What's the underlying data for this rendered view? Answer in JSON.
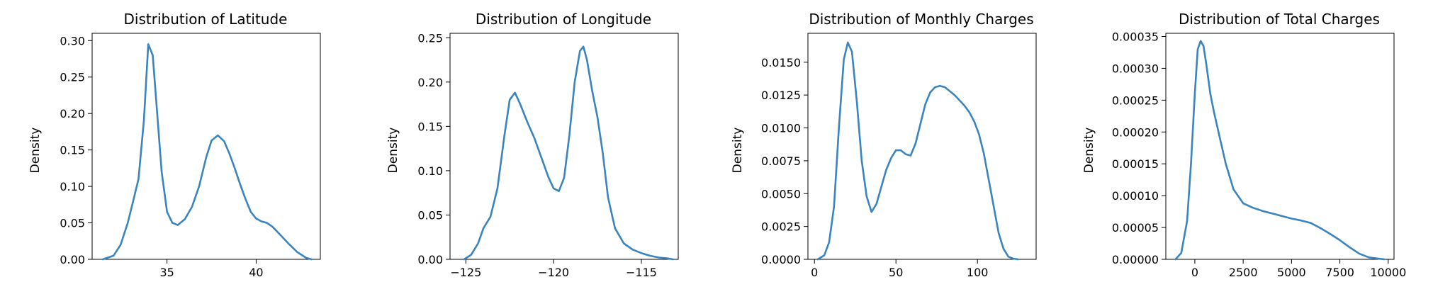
{
  "style": {
    "line_color": "#3a84bf"
  },
  "chart_data": [
    {
      "type": "line",
      "title": "Distribution of Latitude",
      "xlabel": "",
      "ylabel": "Density",
      "xlim": [
        30.8,
        43.6
      ],
      "ylim": [
        0,
        0.31
      ],
      "xticks": [
        35,
        40
      ],
      "yticks": [
        0.0,
        0.05,
        0.1,
        0.15,
        0.2,
        0.25,
        0.3
      ],
      "ytick_labels": [
        "0.00",
        "0.05",
        "0.10",
        "0.15",
        "0.20",
        "0.25",
        "0.30"
      ],
      "series": [
        {
          "x": [
            31.4,
            32.0,
            32.4,
            32.8,
            33.1,
            33.4,
            33.7,
            33.95,
            34.2,
            34.45,
            34.7,
            35.0,
            35.3,
            35.6,
            36.0,
            36.4,
            36.8,
            37.2,
            37.5,
            37.85,
            38.2,
            38.5,
            38.8,
            39.1,
            39.4,
            39.7,
            40.0,
            40.3,
            40.6,
            40.9,
            41.3,
            41.8,
            42.3,
            42.8,
            43.1
          ],
          "y": [
            0.0,
            0.005,
            0.02,
            0.05,
            0.08,
            0.11,
            0.19,
            0.295,
            0.28,
            0.2,
            0.12,
            0.065,
            0.05,
            0.047,
            0.055,
            0.072,
            0.1,
            0.14,
            0.163,
            0.17,
            0.162,
            0.145,
            0.125,
            0.103,
            0.083,
            0.065,
            0.056,
            0.052,
            0.05,
            0.045,
            0.035,
            0.022,
            0.01,
            0.002,
            0.0
          ]
        }
      ]
    },
    {
      "type": "line",
      "title": "Distribution of Longitude",
      "xlabel": "",
      "ylabel": "Density",
      "xlim": [
        -125.9,
        -112.9
      ],
      "ylim": [
        0,
        0.255
      ],
      "xticks": [
        -125,
        -120,
        -115
      ],
      "yticks": [
        0.0,
        0.05,
        0.1,
        0.15,
        0.2,
        0.25
      ],
      "ytick_labels": [
        "0.00",
        "0.05",
        "0.10",
        "0.15",
        "0.20",
        "0.25"
      ],
      "series": [
        {
          "x": [
            -125.1,
            -124.7,
            -124.3,
            -124.0,
            -123.6,
            -123.2,
            -122.8,
            -122.5,
            -122.2,
            -121.9,
            -121.5,
            -121.1,
            -120.7,
            -120.3,
            -120.0,
            -119.7,
            -119.4,
            -119.1,
            -118.8,
            -118.5,
            -118.3,
            -118.1,
            -117.8,
            -117.5,
            -117.2,
            -116.9,
            -116.5,
            -116.0,
            -115.5,
            -115.0,
            -114.5,
            -114.0,
            -113.5,
            -113.2
          ],
          "y": [
            0.0,
            0.005,
            0.018,
            0.035,
            0.048,
            0.08,
            0.14,
            0.18,
            0.188,
            0.175,
            0.155,
            0.137,
            0.115,
            0.093,
            0.08,
            0.077,
            0.092,
            0.14,
            0.2,
            0.235,
            0.24,
            0.225,
            0.19,
            0.16,
            0.12,
            0.07,
            0.035,
            0.018,
            0.011,
            0.007,
            0.004,
            0.002,
            0.001,
            0.0
          ]
        }
      ]
    },
    {
      "type": "line",
      "title": "Distribution of Monthly Charges",
      "xlabel": "",
      "ylabel": "Density",
      "xlim": [
        -4,
        136
      ],
      "ylim": [
        0,
        0.0172
      ],
      "xticks": [
        0,
        50,
        100
      ],
      "yticks": [
        0.0,
        0.0025,
        0.005,
        0.0075,
        0.01,
        0.0125,
        0.015
      ],
      "ytick_labels": [
        "0.0000",
        "0.0025",
        "0.0050",
        "0.0075",
        "0.0100",
        "0.0125",
        "0.0150"
      ],
      "series": [
        {
          "x": [
            2,
            6,
            9,
            12,
            15,
            18,
            20.5,
            23,
            26,
            29,
            32,
            35,
            38,
            41,
            44,
            47,
            50,
            53,
            56,
            59,
            62,
            65,
            68,
            71,
            74,
            77,
            80,
            83,
            86,
            89,
            92,
            95,
            98,
            101,
            104,
            107,
            110,
            113,
            116,
            119,
            122,
            125
          ],
          "y": [
            0.0,
            0.0003,
            0.0013,
            0.004,
            0.01,
            0.0152,
            0.0165,
            0.0158,
            0.012,
            0.0075,
            0.0048,
            0.0036,
            0.0042,
            0.0055,
            0.0068,
            0.0077,
            0.0083,
            0.0083,
            0.008,
            0.0079,
            0.0088,
            0.0103,
            0.0118,
            0.0127,
            0.0131,
            0.0132,
            0.0131,
            0.0128,
            0.0125,
            0.0121,
            0.0117,
            0.0112,
            0.0105,
            0.0095,
            0.008,
            0.006,
            0.004,
            0.002,
            0.0008,
            0.0002,
            5e-05,
            0.0
          ]
        }
      ]
    },
    {
      "type": "line",
      "title": "Distribution of Total Charges",
      "xlabel": "",
      "ylabel": "Density",
      "xlim": [
        -1500,
        10300
      ],
      "ylim": [
        0,
        0.000355
      ],
      "xticks": [
        0,
        2500,
        5000,
        7500,
        10000
      ],
      "yticks": [
        0.0,
        5e-05,
        0.0001,
        0.00015,
        0.0002,
        0.00025,
        0.0003,
        0.00035
      ],
      "ytick_labels": [
        "0.00000",
        "0.00005",
        "0.00010",
        "0.00015",
        "0.00020",
        "0.00025",
        "0.00030",
        "0.00035"
      ],
      "series": [
        {
          "x": [
            -1000,
            -700,
            -400,
            -200,
            0,
            150,
            300,
            450,
            600,
            800,
            1000,
            1300,
            1600,
            2000,
            2500,
            3000,
            3500,
            4000,
            4500,
            5000,
            5500,
            6000,
            6500,
            7000,
            7500,
            8000,
            8500,
            9000,
            9500,
            9800
          ],
          "y": [
            0.0,
            1e-05,
            6e-05,
            0.00015,
            0.00026,
            0.00033,
            0.000343,
            0.000335,
            0.000305,
            0.00026,
            0.00023,
            0.00019,
            0.00015,
            0.00011,
            8.8e-05,
            8.1e-05,
            7.6e-05,
            7.2e-05,
            6.8e-05,
            6.4e-05,
            6.1e-05,
            5.7e-05,
            4.9e-05,
            4e-05,
            3e-05,
            1.9e-05,
            9e-06,
            3e-06,
            1e-06,
            0.0
          ]
        }
      ]
    }
  ]
}
